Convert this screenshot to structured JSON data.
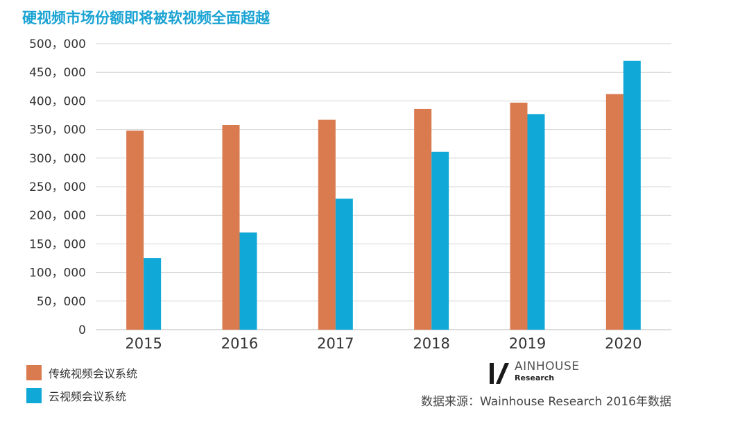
{
  "title": "硬视频市场份额即将被软视频全面超越",
  "chart_data": {
    "type": "bar",
    "categories": [
      "2015",
      "2016",
      "2017",
      "2018",
      "2019",
      "2020"
    ],
    "series": [
      {
        "name": "传统视频会议系统",
        "color": "#d97b4f",
        "values": [
          348000,
          358000,
          367000,
          386000,
          397000,
          412000
        ]
      },
      {
        "name": "云视频会议系统",
        "color": "#10a8d6",
        "values": [
          125000,
          170000,
          229000,
          311000,
          377000,
          470000
        ]
      }
    ],
    "y_ticks": [
      "0",
      "50，000",
      "100，000",
      "150，000",
      "200，000",
      "250，000",
      "300，000",
      "350，000",
      "400，000",
      "450，000",
      "500，000"
    ],
    "ylim": [
      0,
      500000
    ],
    "ystep": 50000,
    "grid": true,
    "legend_position": "bottom-left"
  },
  "legend": [
    {
      "label": "传统视频会议系统",
      "color": "#d97b4f"
    },
    {
      "label": "云视频会议系统",
      "color": "#10a8d6"
    }
  ],
  "logo": {
    "name": "AINHOUSE",
    "sub": "Research",
    "icon": "wainhouse-logo-icon"
  },
  "source": "数据来源：Wainhouse Research 2016年数据"
}
